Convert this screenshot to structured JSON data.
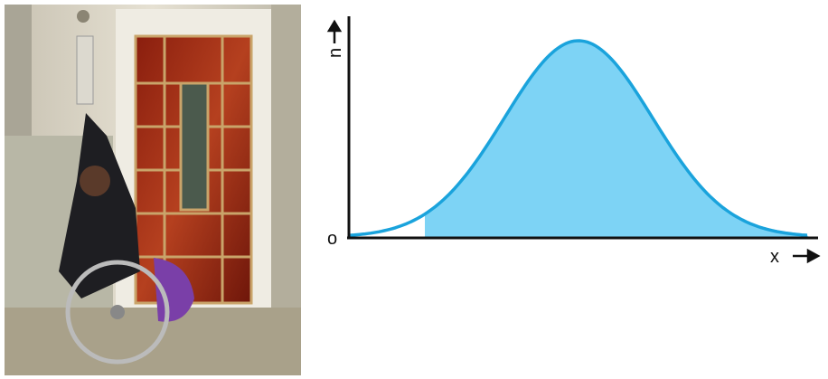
{
  "diagram": {
    "y_axis_label": "n",
    "x_axis_label": "x",
    "origin_label": "o"
  }
}
